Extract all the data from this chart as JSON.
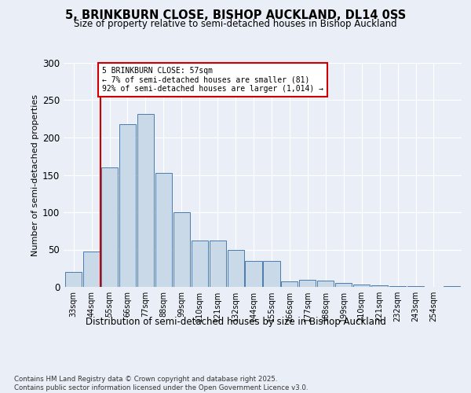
{
  "title": "5, BRINKBURN CLOSE, BISHOP AUCKLAND, DL14 0SS",
  "subtitle": "Size of property relative to semi-detached houses in Bishop Auckland",
  "xlabel": "Distribution of semi-detached houses by size in Bishop Auckland",
  "ylabel": "Number of semi-detached properties",
  "bar_values": [
    20,
    47,
    160,
    218,
    232,
    153,
    100,
    62,
    62,
    50,
    35,
    35,
    7,
    10,
    8,
    5,
    3,
    2,
    1,
    1,
    0,
    1
  ],
  "bin_labels": [
    "33sqm",
    "44sqm",
    "55sqm",
    "66sqm",
    "77sqm",
    "88sqm",
    "99sqm",
    "110sqm",
    "121sqm",
    "132sqm",
    "144sqm",
    "155sqm",
    "166sqm",
    "177sqm",
    "188sqm",
    "199sqm",
    "210sqm",
    "221sqm",
    "232sqm",
    "243sqm",
    "254sqm"
  ],
  "bar_color": "#c9d9e8",
  "bar_edge_color": "#4a7aad",
  "annotation_line1": "5 BRINKBURN CLOSE: 57sqm",
  "annotation_line2": "← 7% of semi-detached houses are smaller (81)",
  "annotation_line3": "92% of semi-detached houses are larger (1,014) →",
  "annotation_box_color": "#ffffff",
  "annotation_box_edge": "#cc0000",
  "ylim": [
    0,
    300
  ],
  "yticks": [
    0,
    50,
    100,
    150,
    200,
    250,
    300
  ],
  "bg_color": "#eaeff7",
  "plot_bg_color": "#eaeff7",
  "footer_text": "Contains HM Land Registry data © Crown copyright and database right 2025.\nContains public sector information licensed under the Open Government Licence v3.0."
}
